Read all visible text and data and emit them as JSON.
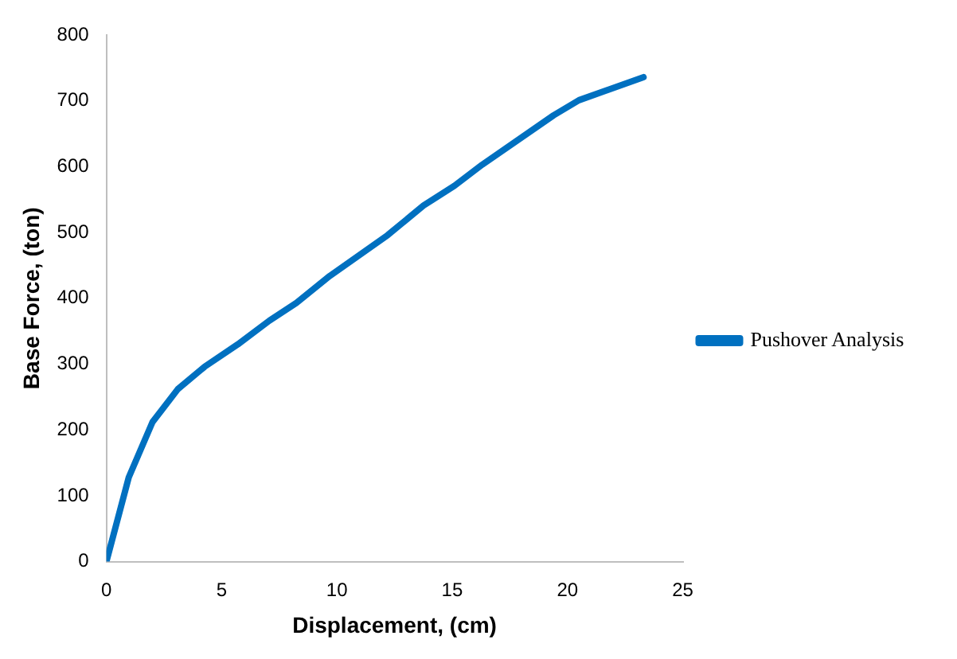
{
  "chart_data": {
    "type": "line",
    "xlabel": "Displacement, (cm)",
    "ylabel": "Base Force, (ton)",
    "x": [
      0,
      0.97,
      2.0,
      3.1,
      4.26,
      5.7,
      7.07,
      8.24,
      9.69,
      12.2,
      13.76,
      15.1,
      16.3,
      19.4,
      20.5,
      23.3
    ],
    "series": [
      {
        "name": "Pushover Analysis",
        "color": "#0070c0",
        "values": [
          0,
          128,
          212,
          262,
          296,
          330,
          366,
          393,
          434,
          496,
          541,
          571,
          603,
          678,
          701,
          736
        ]
      }
    ],
    "xlim": [
      0,
      25
    ],
    "xticks": [
      0,
      5,
      10,
      15,
      20,
      25
    ],
    "ylim": [
      0,
      800
    ],
    "yticks": [
      0,
      100,
      200,
      300,
      400,
      500,
      600,
      700,
      800
    ],
    "grid": false,
    "legend": "right",
    "marker": "none",
    "line_style": "solid"
  }
}
